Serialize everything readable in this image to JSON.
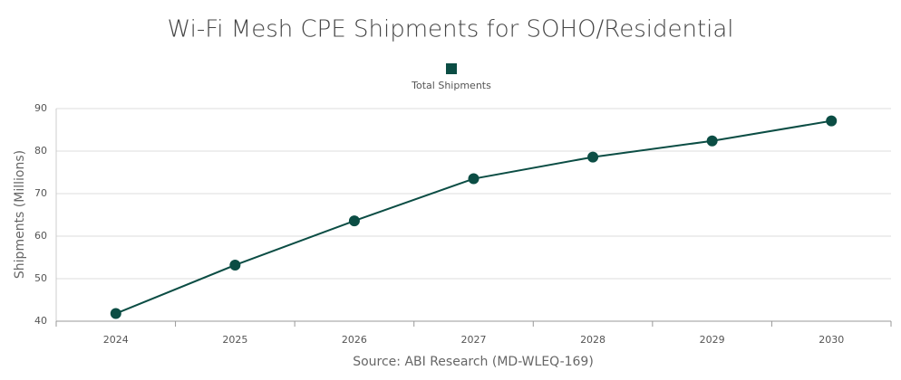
{
  "chart_data": {
    "type": "line",
    "title": "Wi-Fi Mesh CPE Shipments for SOHO/Residential",
    "y_label": "Shipments (Millions)",
    "source": "Source: ABI Research (MD-WLEQ-169)",
    "categories": [
      "2024",
      "2025",
      "2026",
      "2027",
      "2028",
      "2029",
      "2030"
    ],
    "series": [
      {
        "name": "Total Shipments",
        "color": "#0b4d44",
        "values": [
          41.8,
          53.2,
          63.6,
          73.5,
          78.6,
          82.4,
          87.1
        ]
      }
    ],
    "ylim": [
      40,
      90
    ],
    "yticks": [
      40,
      50,
      60,
      70,
      80,
      90
    ],
    "grid": true,
    "legend": "top"
  }
}
